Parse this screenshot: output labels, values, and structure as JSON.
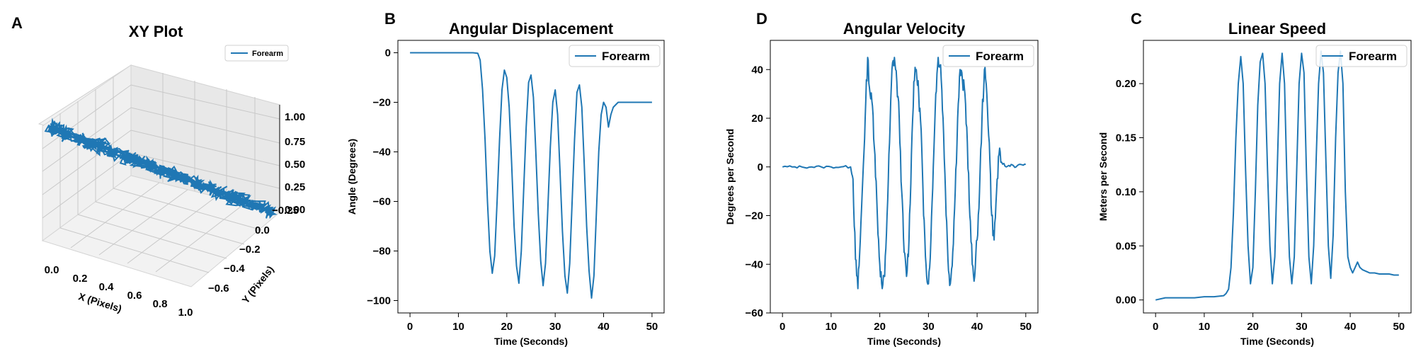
{
  "colors": {
    "series": "#1f77b4",
    "grid": "#b0b0b0"
  },
  "chart_data": [
    {
      "panel": "A",
      "type": "line3d",
      "title": "XY Plot",
      "xlabel": "X (Pixels)",
      "ylabel": "Y (Pixels)",
      "zlabel": "",
      "xlim": [
        0.0,
        1.0
      ],
      "ylim": [
        -0.7,
        0.0
      ],
      "zlim": [
        -0.3,
        1.1
      ],
      "xticks": [
        "0.0",
        "0.2",
        "0.4",
        "0.6",
        "0.8",
        "1.0"
      ],
      "yticks": [
        "0.0",
        "−0.2",
        "−0.4",
        "−0.6"
      ],
      "zticks": [
        "1.00",
        "0.75",
        "0.50",
        "0.25",
        "0.00",
        "−0.25"
      ],
      "legend": "upper right",
      "series": [
        {
          "name": "Forearm",
          "description_values": {
            "x_range": [
              0.0,
              1.0
            ],
            "y_range": [
              -0.65,
              0.0
            ],
            "z": 0.0
          }
        }
      ]
    },
    {
      "panel": "B",
      "type": "line",
      "title": "Angular Displacement",
      "xlabel": "Time (Seconds)",
      "ylabel": "Angle (Degrees)",
      "xlim": [
        -2.5,
        52.5
      ],
      "ylim": [
        -105,
        5
      ],
      "xticks": [
        "0",
        "10",
        "20",
        "30",
        "40",
        "50"
      ],
      "yticks": [
        "0",
        "−20",
        "−40",
        "−60",
        "−80",
        "−100"
      ],
      "legend": "upper right",
      "series": [
        {
          "name": "Forearm",
          "x": [
            0,
            1,
            2,
            3,
            4,
            5,
            6,
            7,
            8,
            9,
            10,
            11,
            12,
            13,
            14,
            14.5,
            15,
            15.5,
            16,
            16.5,
            17,
            17.5,
            18,
            18.5,
            19,
            19.5,
            20,
            20.5,
            21,
            21.5,
            22,
            22.5,
            23,
            23.5,
            24,
            24.5,
            25,
            25.5,
            26,
            26.5,
            27,
            27.5,
            28,
            28.5,
            29,
            29.5,
            30,
            30.5,
            31,
            31.5,
            32,
            32.5,
            33,
            33.5,
            34,
            34.5,
            35,
            35.5,
            36,
            36.5,
            37,
            37.5,
            38,
            38.5,
            39,
            39.5,
            40,
            40.5,
            41,
            41.5,
            42,
            42.5,
            43,
            43.5,
            44,
            44.5,
            45,
            46,
            47,
            48,
            49,
            50
          ],
          "values": [
            0,
            0,
            0,
            0,
            0,
            0,
            0,
            0,
            0,
            0,
            0,
            0,
            0,
            0,
            -0.2,
            -3,
            -15,
            -35,
            -60,
            -80,
            -89,
            -82,
            -60,
            -35,
            -15,
            -7,
            -10,
            -22,
            -45,
            -70,
            -86,
            -93,
            -80,
            -55,
            -30,
            -12,
            -9,
            -18,
            -40,
            -65,
            -84,
            -94,
            -85,
            -62,
            -38,
            -20,
            -15,
            -25,
            -48,
            -72,
            -90,
            -97,
            -85,
            -60,
            -35,
            -16,
            -13,
            -22,
            -45,
            -70,
            -88,
            -99,
            -90,
            -65,
            -40,
            -25,
            -20,
            -22,
            -30,
            -25,
            -22,
            -21,
            -20,
            -20,
            -20,
            -20,
            -20,
            -20,
            -20,
            -20,
            -20,
            -20
          ]
        }
      ]
    },
    {
      "panel": "D",
      "type": "line",
      "title": "Angular Velocity",
      "xlabel": "Time (Seconds)",
      "ylabel": "Degrees per Second",
      "xlim": [
        -2.5,
        52.5
      ],
      "ylim": [
        -60,
        52
      ],
      "xticks": [
        "0",
        "10",
        "20",
        "30",
        "40",
        "50"
      ],
      "yticks": [
        "40",
        "20",
        "0",
        "−20",
        "−40",
        "−60"
      ],
      "legend": "upper right",
      "series": [
        {
          "name": "Forearm",
          "x": [
            0,
            2,
            4,
            6,
            8,
            10,
            12,
            14,
            14.5,
            15,
            15.5,
            16,
            16.5,
            17,
            17.5,
            18,
            18.5,
            19,
            19.5,
            20,
            20.5,
            21,
            21.5,
            22,
            22.5,
            23,
            23.5,
            24,
            24.5,
            25,
            25.5,
            26,
            26.5,
            27,
            27.5,
            28,
            28.5,
            29,
            29.5,
            30,
            30.5,
            31,
            31.5,
            32,
            32.5,
            33,
            33.5,
            34,
            34.5,
            35,
            35.5,
            36,
            36.5,
            37,
            37.5,
            38,
            38.5,
            39,
            39.5,
            40,
            40.5,
            41,
            41.5,
            42,
            42.5,
            43,
            43.5,
            44,
            44.5,
            45,
            46,
            47,
            48,
            49,
            50
          ],
          "values": [
            0,
            0,
            0,
            0,
            0,
            0,
            0,
            0,
            -5,
            -38,
            -50,
            -30,
            -5,
            20,
            45,
            30,
            25,
            5,
            -20,
            -40,
            -50,
            -45,
            -20,
            10,
            40,
            45,
            35,
            20,
            -10,
            -35,
            -45,
            -30,
            5,
            35,
            40,
            30,
            15,
            -20,
            -40,
            -48,
            -30,
            0,
            30,
            45,
            42,
            20,
            -10,
            -38,
            -48,
            -35,
            -10,
            20,
            40,
            35,
            30,
            10,
            -20,
            -40,
            -45,
            -30,
            -10,
            20,
            40,
            30,
            10,
            -20,
            -30,
            -10,
            5,
            2,
            0,
            1,
            0,
            1,
            1
          ]
        }
      ]
    },
    {
      "panel": "C",
      "type": "line",
      "title": "Linear Speed",
      "xlabel": "Time (Seconds)",
      "ylabel": "Meters per Second",
      "xlim": [
        -2.5,
        52.5
      ],
      "ylim": [
        -0.012,
        0.24
      ],
      "xticks": [
        "0",
        "10",
        "20",
        "30",
        "40",
        "50"
      ],
      "yticks": [
        "0.20",
        "0.15",
        "0.10",
        "0.05",
        "0.00"
      ],
      "legend": "upper right",
      "series": [
        {
          "name": "Forearm",
          "x": [
            0,
            2,
            4,
            6,
            8,
            10,
            12,
            14,
            14.5,
            15,
            15.5,
            16,
            16.5,
            17,
            17.5,
            18,
            18.5,
            19,
            19.5,
            20,
            20.5,
            21,
            21.5,
            22,
            22.5,
            23,
            23.5,
            24,
            24.5,
            25,
            25.5,
            26,
            26.5,
            27,
            27.5,
            28,
            28.5,
            29,
            29.5,
            30,
            30.5,
            31,
            31.5,
            32,
            32.5,
            33,
            33.5,
            34,
            34.5,
            35,
            35.5,
            36,
            36.5,
            37,
            37.5,
            38,
            38.5,
            39,
            39.5,
            40,
            40.5,
            41,
            41.5,
            42,
            42.5,
            43,
            43.5,
            44,
            45,
            46,
            47,
            48,
            49,
            50
          ],
          "values": [
            0,
            0.002,
            0.002,
            0.002,
            0.002,
            0.003,
            0.003,
            0.004,
            0.006,
            0.01,
            0.03,
            0.08,
            0.15,
            0.2,
            0.225,
            0.2,
            0.12,
            0.05,
            0.015,
            0.03,
            0.1,
            0.18,
            0.22,
            0.228,
            0.2,
            0.12,
            0.05,
            0.015,
            0.04,
            0.12,
            0.2,
            0.228,
            0.2,
            0.11,
            0.04,
            0.015,
            0.04,
            0.12,
            0.2,
            0.228,
            0.21,
            0.12,
            0.04,
            0.015,
            0.05,
            0.13,
            0.2,
            0.23,
            0.21,
            0.13,
            0.05,
            0.02,
            0.06,
            0.15,
            0.21,
            0.23,
            0.2,
            0.1,
            0.04,
            0.03,
            0.025,
            0.03,
            0.035,
            0.03,
            0.028,
            0.027,
            0.026,
            0.025,
            0.025,
            0.024,
            0.024,
            0.024,
            0.023,
            0.023
          ]
        }
      ]
    }
  ]
}
